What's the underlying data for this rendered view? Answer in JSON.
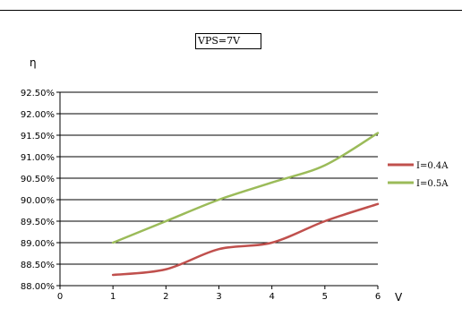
{
  "chart_data": {
    "type": "line",
    "title": "VPS=7V",
    "ylabel": "η",
    "xlabel": "V",
    "x_ticks": [
      "0",
      "1",
      "2",
      "3",
      "4",
      "5",
      "6"
    ],
    "y_ticks": [
      "88.00%",
      "88.50%",
      "89.00%",
      "89.50%",
      "90.00%",
      "90.50%",
      "91.00%",
      "91.50%",
      "92.00%",
      "92.50%"
    ],
    "xlim": [
      0,
      6
    ],
    "ylim": [
      88.0,
      92.5
    ],
    "grid": true,
    "legend_position": "right",
    "series": [
      {
        "name": "I=0.4A",
        "color": "#c0504d",
        "x": [
          1,
          2,
          3,
          4,
          5,
          6
        ],
        "values": [
          88.25,
          88.38,
          88.85,
          89.0,
          89.5,
          89.9
        ]
      },
      {
        "name": "I=0.5A",
        "color": "#9bbb59",
        "x": [
          1,
          2,
          3,
          4,
          5,
          6
        ],
        "values": [
          89.0,
          89.5,
          90.0,
          90.4,
          90.8,
          91.55
        ]
      }
    ]
  }
}
